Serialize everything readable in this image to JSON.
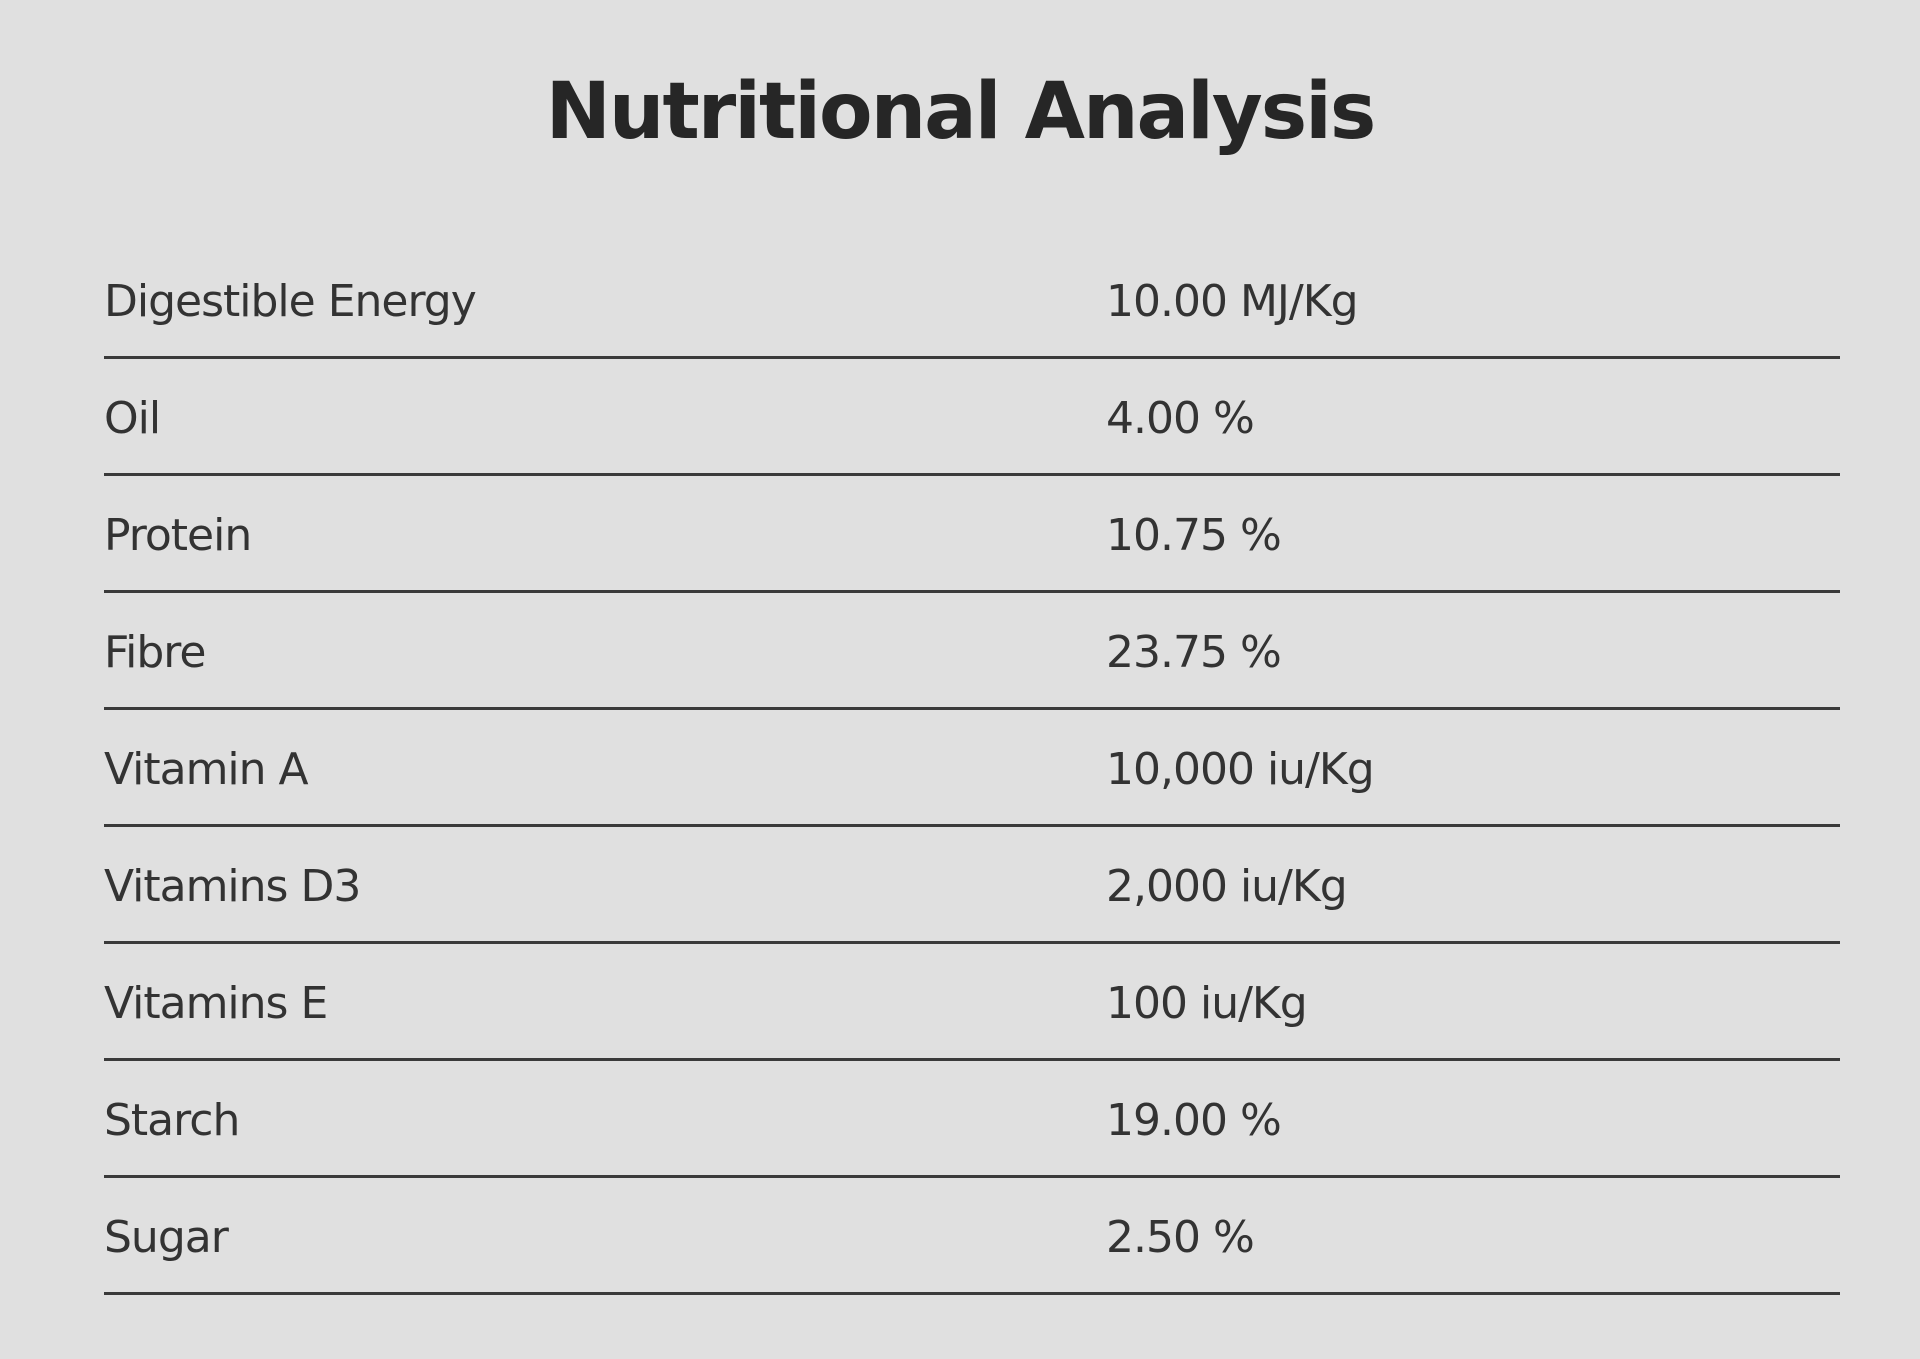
{
  "title": "Nutritional Analysis",
  "rows": [
    {
      "label": "Digestible Energy",
      "value": "10.00 MJ/Kg"
    },
    {
      "label": "Oil",
      "value": "4.00 %"
    },
    {
      "label": "Protein",
      "value": "10.75 %"
    },
    {
      "label": "Fibre",
      "value": "23.75 %"
    },
    {
      "label": "Vitamin A",
      "value": "10,000 iu/Kg"
    },
    {
      "label": "Vitamins D3",
      "value": "2,000 iu/Kg"
    },
    {
      "label": "Vitamins E",
      "value": "100 iu/Kg"
    },
    {
      "label": "Starch",
      "value": "19.00 %"
    },
    {
      "label": "Sugar",
      "value": "2.50 %"
    }
  ],
  "colors": {
    "background": "#e0e0e0",
    "text": "#333333",
    "divider": "#3a3a3a"
  }
}
